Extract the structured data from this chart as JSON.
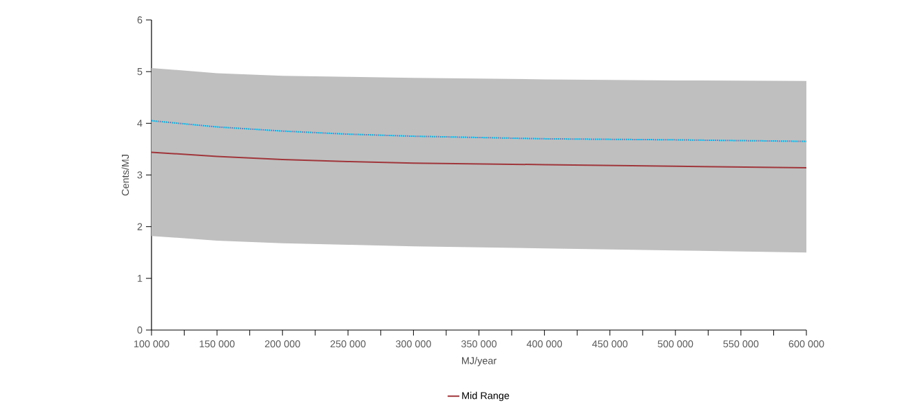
{
  "chart_data": {
    "type": "line",
    "xlabel": "MJ/year",
    "ylabel": "Cents/MJ",
    "x": [
      100000,
      150000,
      200000,
      250000,
      300000,
      400000,
      500000,
      600000
    ],
    "series": [
      {
        "color": "#33ffff",
        "line_style": "dashed",
        "values": [
          4.05,
          3.93,
          3.85,
          3.79,
          3.75,
          3.7,
          3.68,
          3.65
        ]
      },
      {
        "color": "#4472c4",
        "line_style": "dotted",
        "values": [
          4.05,
          3.93,
          3.85,
          3.79,
          3.75,
          3.7,
          3.68,
          3.65
        ]
      },
      {
        "name": "Mid Range",
        "color": "#a0353a",
        "line_style": "solid",
        "values": [
          3.44,
          3.36,
          3.3,
          3.26,
          3.23,
          3.2,
          3.17,
          3.14
        ],
        "lower": [
          1.82,
          1.73,
          1.68,
          1.65,
          1.62,
          1.58,
          1.54,
          1.5
        ],
        "upper": [
          5.07,
          4.97,
          4.92,
          4.9,
          4.88,
          4.85,
          4.83,
          4.82
        ]
      }
    ],
    "xlim": [
      100000,
      600000
    ],
    "ylim": [
      0,
      6
    ],
    "xticks": [
      {
        "value": 100000,
        "label": "100 000"
      },
      {
        "value": 125000,
        "label": null
      },
      {
        "value": 150000,
        "label": "150 000"
      },
      {
        "value": 175000,
        "label": null
      },
      {
        "value": 200000,
        "label": "200 000"
      },
      {
        "value": 225000,
        "label": null
      },
      {
        "value": 250000,
        "label": "250 000"
      },
      {
        "value": 275000,
        "label": null
      },
      {
        "value": 300000,
        "label": "300 000"
      },
      {
        "value": 325000,
        "label": null
      },
      {
        "value": 350000,
        "label": "350 000"
      },
      {
        "value": 375000,
        "label": null
      },
      {
        "value": 400000,
        "label": "400 000"
      },
      {
        "value": 425000,
        "label": null
      },
      {
        "value": 450000,
        "label": "450 000"
      },
      {
        "value": 475000,
        "label": null
      },
      {
        "value": 500000,
        "label": "500 000"
      },
      {
        "value": 525000,
        "label": null
      },
      {
        "value": 550000,
        "label": "550 000"
      },
      {
        "value": 575000,
        "label": null
      },
      {
        "value": 600000,
        "label": "600 000"
      }
    ],
    "yticks": [
      0,
      1,
      2,
      3,
      4,
      5,
      6
    ],
    "grid": false,
    "legend": "bottom",
    "marker": "none"
  }
}
